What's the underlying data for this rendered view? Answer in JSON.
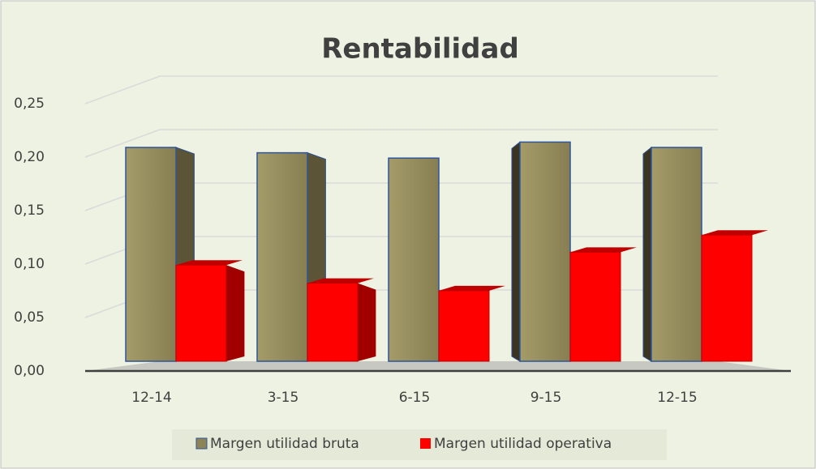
{
  "chart_data": {
    "type": "bar",
    "title": "Rentabilidad",
    "categories": [
      "12-14",
      "3-15",
      "6-15",
      "9-15",
      "12-15"
    ],
    "series": [
      {
        "name": "Margen utilidad bruta",
        "color": "#8c8457",
        "values": [
          0.2,
          0.195,
          0.19,
          0.205,
          0.2
        ]
      },
      {
        "name": "Margen utilidad operativa",
        "color": "#ff0000",
        "values": [
          0.09,
          0.073,
          0.066,
          0.102,
          0.118
        ]
      }
    ],
    "ylim": [
      0,
      0.25
    ],
    "yticks": [
      {
        "value": 0,
        "label": "0,00"
      },
      {
        "value": 0.05,
        "label": "0,05"
      },
      {
        "value": 0.1,
        "label": "0,10"
      },
      {
        "value": 0.15,
        "label": "0,15"
      },
      {
        "value": 0.2,
        "label": "0,20"
      },
      {
        "value": 0.25,
        "label": "0,25"
      }
    ],
    "grid": true,
    "legend": "bottom"
  }
}
